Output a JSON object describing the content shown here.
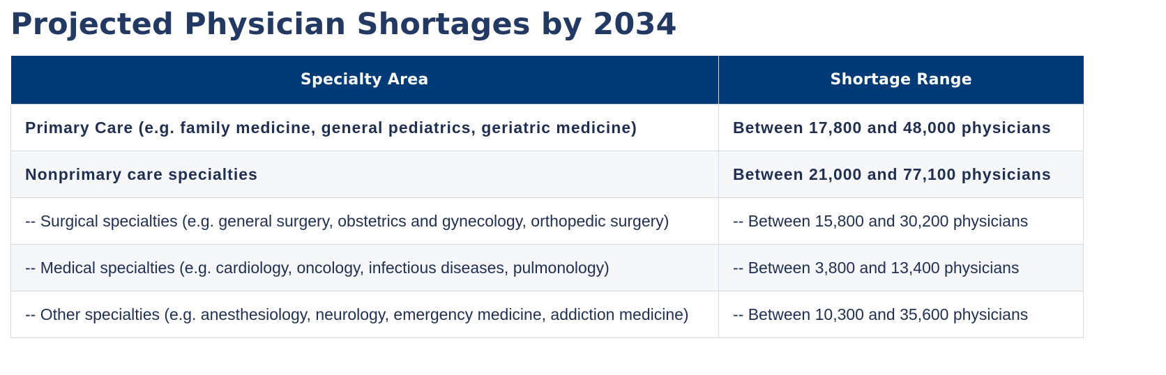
{
  "title": "Projected Physician Shortages by 2034",
  "table": {
    "headers": [
      "Specialty Area",
      "Shortage Range"
    ],
    "rows": [
      {
        "specialty": "Primary Care (e.g. family medicine, general pediatrics, geriatric medicine)",
        "range": "Between 17,800 and 48,000 physicians"
      },
      {
        "specialty": "Nonprimary care specialties",
        "range": "Between 21,000 and 77,100 physicians"
      },
      {
        "specialty": "-- Surgical specialties (e.g. general surgery, obstetrics and gynecology, orthopedic surgery)",
        "range": "-- Between 15,800 and 30,200 physicians"
      },
      {
        "specialty": "-- Medical specialties (e.g. cardiology, oncology, infectious diseases, pulmonology)",
        "range": "-- Between 3,800 and 13,400 physicians"
      },
      {
        "specialty": "-- Other specialties (e.g. anesthesiology, neurology, emergency medicine, addiction medicine)",
        "range": "-- Between 10,300 and 35,600 physicians"
      }
    ]
  },
  "colors": {
    "header_bg": "#003b78",
    "title_text": "#223a63",
    "body_text": "#1f2f52",
    "alt_row_bg": "#f6f7f9",
    "border": "#d6dbe3"
  }
}
